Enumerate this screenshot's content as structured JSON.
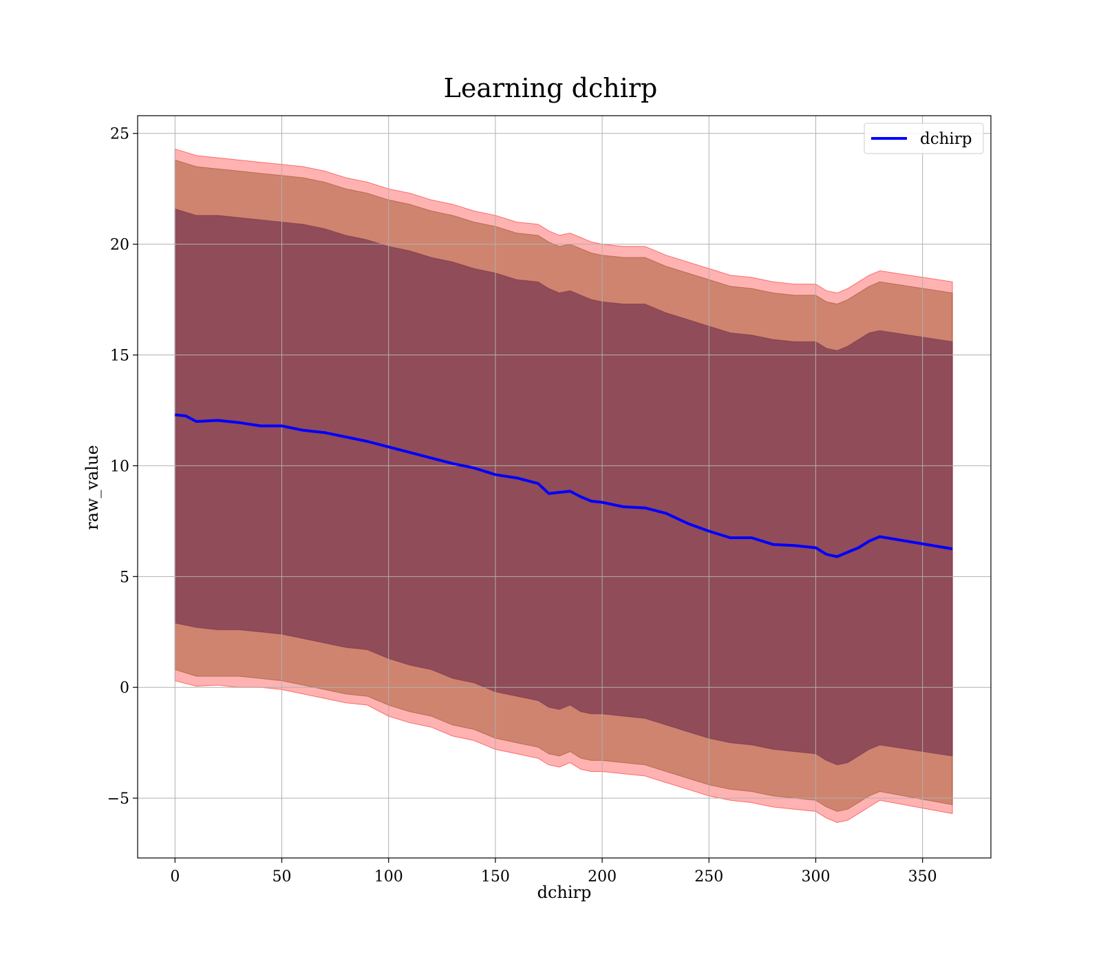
{
  "chart_data": {
    "type": "line",
    "title": "Learning dchirp",
    "xlabel": "dchirp",
    "ylabel": "raw_value",
    "xlim": [
      -17.5,
      382
    ],
    "ylim": [
      -7.7,
      25.8
    ],
    "xticks": [
      0,
      50,
      100,
      150,
      200,
      250,
      300,
      350
    ],
    "yticks": [
      -5,
      0,
      5,
      10,
      15,
      20,
      25
    ],
    "grid": true,
    "legend": {
      "position": "top-right",
      "entries": [
        "dchirp"
      ]
    },
    "colors": {
      "line": "#0000ff",
      "band_outer": "#ff0000",
      "band_mid": "#8b4513",
      "band_inner": "#6b2a4a"
    },
    "series": [
      {
        "name": "dchirp",
        "x": [
          0,
          5,
          10,
          20,
          30,
          40,
          50,
          60,
          70,
          80,
          90,
          100,
          110,
          120,
          130,
          140,
          150,
          160,
          170,
          175,
          180,
          185,
          190,
          195,
          200,
          210,
          220,
          230,
          240,
          250,
          260,
          270,
          280,
          290,
          300,
          305,
          310,
          315,
          320,
          325,
          330,
          364
        ],
        "y": [
          12.3,
          12.25,
          12.0,
          12.05,
          11.95,
          11.8,
          11.8,
          11.6,
          11.5,
          11.3,
          11.1,
          10.85,
          10.6,
          10.35,
          10.1,
          9.9,
          9.6,
          9.45,
          9.2,
          8.75,
          8.8,
          8.85,
          8.6,
          8.4,
          8.35,
          8.15,
          8.1,
          7.85,
          7.4,
          7.05,
          6.75,
          6.75,
          6.45,
          6.4,
          6.3,
          6.0,
          5.9,
          6.1,
          6.3,
          6.6,
          6.8,
          6.25
        ]
      }
    ],
    "bands": [
      {
        "role": "outer",
        "x": [
          0,
          10,
          20,
          30,
          40,
          50,
          60,
          70,
          80,
          90,
          100,
          110,
          120,
          130,
          140,
          150,
          160,
          170,
          175,
          180,
          185,
          190,
          195,
          200,
          210,
          220,
          230,
          240,
          250,
          260,
          270,
          280,
          290,
          300,
          305,
          310,
          315,
          320,
          325,
          330,
          364
        ],
        "upper": [
          24.3,
          24.0,
          23.9,
          23.8,
          23.7,
          23.6,
          23.5,
          23.3,
          23.0,
          22.8,
          22.5,
          22.3,
          22.0,
          21.8,
          21.5,
          21.3,
          21.0,
          20.9,
          20.6,
          20.4,
          20.5,
          20.3,
          20.1,
          20.0,
          19.9,
          19.9,
          19.5,
          19.2,
          18.9,
          18.6,
          18.5,
          18.3,
          18.2,
          18.2,
          17.9,
          17.8,
          18.0,
          18.3,
          18.6,
          18.8,
          18.3
        ],
        "lower": [
          0.3,
          0.05,
          0.1,
          0.0,
          0.0,
          -0.1,
          -0.3,
          -0.5,
          -0.7,
          -0.8,
          -1.3,
          -1.6,
          -1.8,
          -2.2,
          -2.4,
          -2.8,
          -3.0,
          -3.2,
          -3.5,
          -3.6,
          -3.4,
          -3.7,
          -3.8,
          -3.8,
          -3.9,
          -4.0,
          -4.3,
          -4.6,
          -4.9,
          -5.1,
          -5.2,
          -5.4,
          -5.5,
          -5.6,
          -5.9,
          -6.1,
          -6.0,
          -5.7,
          -5.4,
          -5.1,
          -5.7
        ]
      },
      {
        "role": "mid",
        "x": [
          0,
          10,
          20,
          30,
          40,
          50,
          60,
          70,
          80,
          90,
          100,
          110,
          120,
          130,
          140,
          150,
          160,
          170,
          175,
          180,
          185,
          190,
          195,
          200,
          210,
          220,
          230,
          240,
          250,
          260,
          270,
          280,
          290,
          300,
          305,
          310,
          315,
          320,
          325,
          330,
          364
        ],
        "upper": [
          23.8,
          23.5,
          23.4,
          23.3,
          23.2,
          23.1,
          23.0,
          22.8,
          22.5,
          22.3,
          22.0,
          21.8,
          21.5,
          21.3,
          21.0,
          20.8,
          20.5,
          20.4,
          20.1,
          19.9,
          20.0,
          19.8,
          19.6,
          19.5,
          19.4,
          19.4,
          19.0,
          18.7,
          18.4,
          18.1,
          18.0,
          17.8,
          17.7,
          17.7,
          17.4,
          17.3,
          17.5,
          17.8,
          18.1,
          18.3,
          17.8
        ],
        "lower": [
          0.8,
          0.5,
          0.5,
          0.5,
          0.4,
          0.3,
          0.1,
          -0.1,
          -0.3,
          -0.4,
          -0.8,
          -1.1,
          -1.3,
          -1.7,
          -1.9,
          -2.3,
          -2.5,
          -2.7,
          -3.0,
          -3.1,
          -2.9,
          -3.2,
          -3.3,
          -3.3,
          -3.4,
          -3.5,
          -3.8,
          -4.1,
          -4.4,
          -4.6,
          -4.7,
          -4.9,
          -5.0,
          -5.1,
          -5.4,
          -5.6,
          -5.5,
          -5.2,
          -4.9,
          -4.7,
          -5.3
        ]
      },
      {
        "role": "inner",
        "x": [
          0,
          10,
          20,
          30,
          40,
          50,
          60,
          70,
          80,
          90,
          100,
          110,
          120,
          130,
          140,
          150,
          160,
          170,
          175,
          180,
          185,
          190,
          195,
          200,
          210,
          220,
          230,
          240,
          250,
          260,
          270,
          280,
          290,
          300,
          305,
          310,
          315,
          320,
          325,
          330,
          364
        ],
        "upper": [
          21.6,
          21.3,
          21.3,
          21.2,
          21.1,
          21.0,
          20.9,
          20.7,
          20.4,
          20.2,
          19.9,
          19.7,
          19.4,
          19.2,
          18.9,
          18.7,
          18.4,
          18.3,
          18.0,
          17.8,
          17.9,
          17.7,
          17.5,
          17.4,
          17.3,
          17.3,
          16.9,
          16.6,
          16.3,
          16.0,
          15.9,
          15.7,
          15.6,
          15.6,
          15.3,
          15.2,
          15.4,
          15.7,
          16.0,
          16.1,
          15.6
        ],
        "lower": [
          2.9,
          2.7,
          2.6,
          2.6,
          2.5,
          2.4,
          2.2,
          2.0,
          1.8,
          1.7,
          1.3,
          1.0,
          0.8,
          0.4,
          0.2,
          -0.2,
          -0.4,
          -0.6,
          -0.9,
          -1.0,
          -0.8,
          -1.1,
          -1.2,
          -1.2,
          -1.3,
          -1.4,
          -1.7,
          -2.0,
          -2.3,
          -2.5,
          -2.6,
          -2.8,
          -2.9,
          -3.0,
          -3.3,
          -3.5,
          -3.4,
          -3.1,
          -2.8,
          -2.6,
          -3.1
        ]
      }
    ]
  }
}
